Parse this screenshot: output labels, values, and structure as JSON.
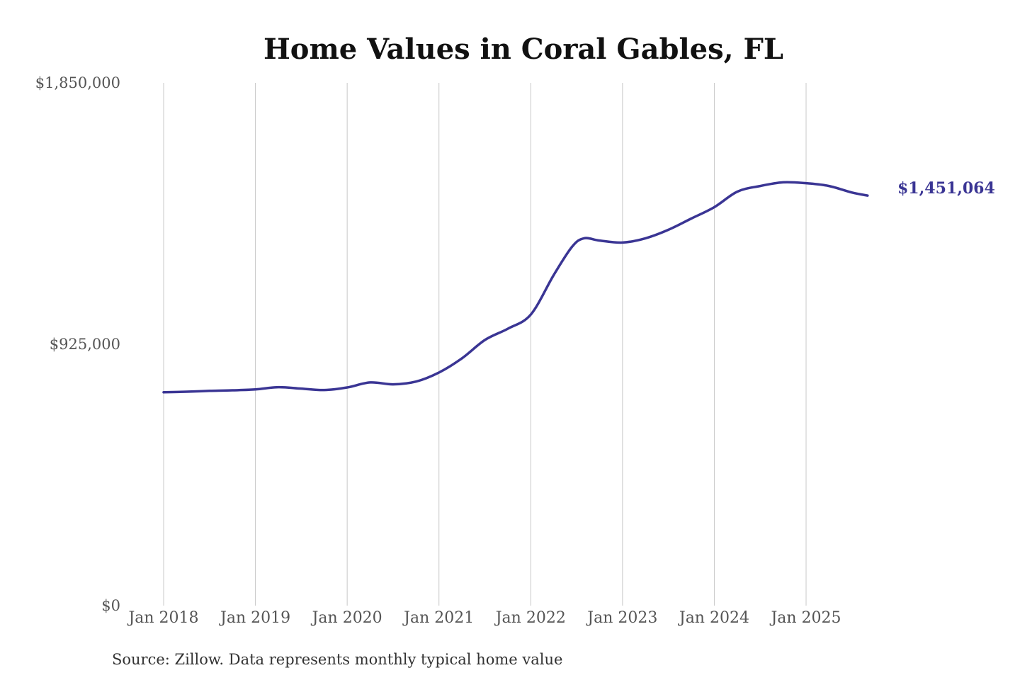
{
  "chart_data": {
    "type": "line",
    "title": "Home Values in Coral Gables, FL",
    "source": "Source: Zillow. Data represents monthly typical home value",
    "ylim": [
      0,
      1850000
    ],
    "yticks": [
      {
        "value": 0,
        "label": "$0"
      },
      {
        "value": 925000,
        "label": "$925,000"
      },
      {
        "value": 1850000,
        "label": "$1,850,000"
      }
    ],
    "xticks": [
      {
        "value": 2018,
        "label": "Jan 2018"
      },
      {
        "value": 2019,
        "label": "Jan 2019"
      },
      {
        "value": 2020,
        "label": "Jan 2020"
      },
      {
        "value": 2021,
        "label": "Jan 2021"
      },
      {
        "value": 2022,
        "label": "Jan 2022"
      },
      {
        "value": 2023,
        "label": "Jan 2023"
      },
      {
        "value": 2024,
        "label": "Jan 2024"
      },
      {
        "value": 2025,
        "label": "Jan 2025"
      }
    ],
    "grid": "vertical",
    "line_color": "#3a3594",
    "end_label": "$1,451,064",
    "series": [
      {
        "points": [
          [
            2018.0,
            755000
          ],
          [
            2018.25,
            757000
          ],
          [
            2018.5,
            760000
          ],
          [
            2018.75,
            762000
          ],
          [
            2019.0,
            765000
          ],
          [
            2019.25,
            773000
          ],
          [
            2019.5,
            768000
          ],
          [
            2019.75,
            763000
          ],
          [
            2020.0,
            772000
          ],
          [
            2020.25,
            790000
          ],
          [
            2020.5,
            783000
          ],
          [
            2020.75,
            793000
          ],
          [
            2021.0,
            825000
          ],
          [
            2021.25,
            875000
          ],
          [
            2021.5,
            940000
          ],
          [
            2021.75,
            980000
          ],
          [
            2022.0,
            1030000
          ],
          [
            2022.25,
            1170000
          ],
          [
            2022.45,
            1270000
          ],
          [
            2022.58,
            1300000
          ],
          [
            2022.75,
            1292000
          ],
          [
            2023.0,
            1285000
          ],
          [
            2023.25,
            1300000
          ],
          [
            2023.5,
            1330000
          ],
          [
            2023.75,
            1370000
          ],
          [
            2024.0,
            1410000
          ],
          [
            2024.25,
            1465000
          ],
          [
            2024.5,
            1485000
          ],
          [
            2024.75,
            1498000
          ],
          [
            2025.0,
            1495000
          ],
          [
            2025.25,
            1485000
          ],
          [
            2025.5,
            1462000
          ],
          [
            2025.67,
            1451064
          ]
        ]
      }
    ]
  }
}
